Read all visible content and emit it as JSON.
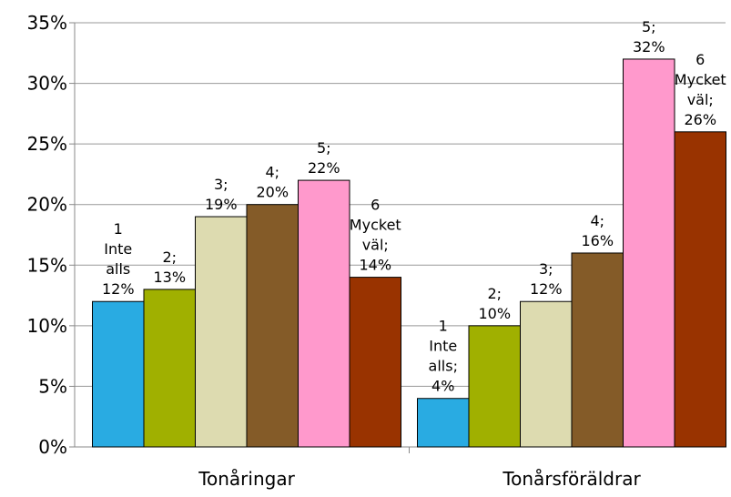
{
  "chart_data": {
    "type": "bar",
    "categories": [
      "Tonåringar",
      "Tonårsföräldrar"
    ],
    "series": [
      {
        "color": "#29abe2",
        "values": [
          12,
          4
        ],
        "value_labels": [
          "1 Inte alls 12%",
          "1 Inte alls; 4%"
        ]
      },
      {
        "color": "#a0b000",
        "values": [
          13,
          10
        ],
        "value_labels": [
          "2; 13%",
          "2; 10%"
        ]
      },
      {
        "color": "#dddbb0",
        "values": [
          19,
          12
        ],
        "value_labels": [
          "3; 19%",
          "3; 12%"
        ]
      },
      {
        "color": "#845b28",
        "values": [
          20,
          16
        ],
        "value_labels": [
          "4; 20%",
          "4; 16%"
        ]
      },
      {
        "color": "#ff99cc",
        "values": [
          22,
          32
        ],
        "value_labels": [
          "5; 22%",
          "5; 32%"
        ]
      },
      {
        "color": "#993300",
        "values": [
          14,
          26
        ],
        "value_labels": [
          "6 Mycket väl; 14%",
          "6 Mycket väl; 26%"
        ]
      }
    ],
    "ylim": [
      0,
      35
    ],
    "yticks": [
      {
        "value": 0,
        "label": "0%"
      },
      {
        "value": 5,
        "label": "5%"
      },
      {
        "value": 10,
        "label": "10%"
      },
      {
        "value": 15,
        "label": "15%"
      },
      {
        "value": 20,
        "label": "20%"
      },
      {
        "value": 25,
        "label": "25%"
      },
      {
        "value": 30,
        "label": "30%"
      },
      {
        "value": 35,
        "label": "35%"
      }
    ],
    "grid": true
  }
}
